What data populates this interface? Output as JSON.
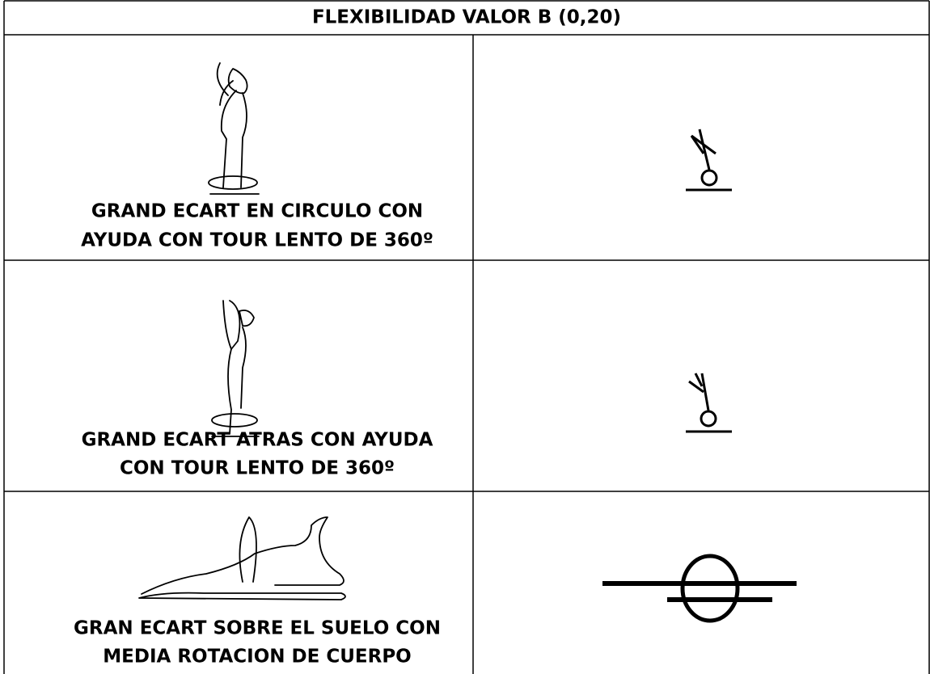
{
  "table": {
    "title": "FLEXIBILIDAD VALOR B (0,20)",
    "rows": [
      {
        "lines": [
          "GRAND ECART EN CIRCULO CON",
          "AYUDA CON TOUR LENTO DE 360º"
        ]
      },
      {
        "lines": [
          "GRAND ECART ATRAS CON AYUDA",
          "CON TOUR LENTO DE 360º"
        ]
      },
      {
        "lines": [
          "GRAN ECART SOBRE EL SUELO CON",
          "MEDIA ROTACION DE CUERPO"
        ]
      }
    ]
  }
}
